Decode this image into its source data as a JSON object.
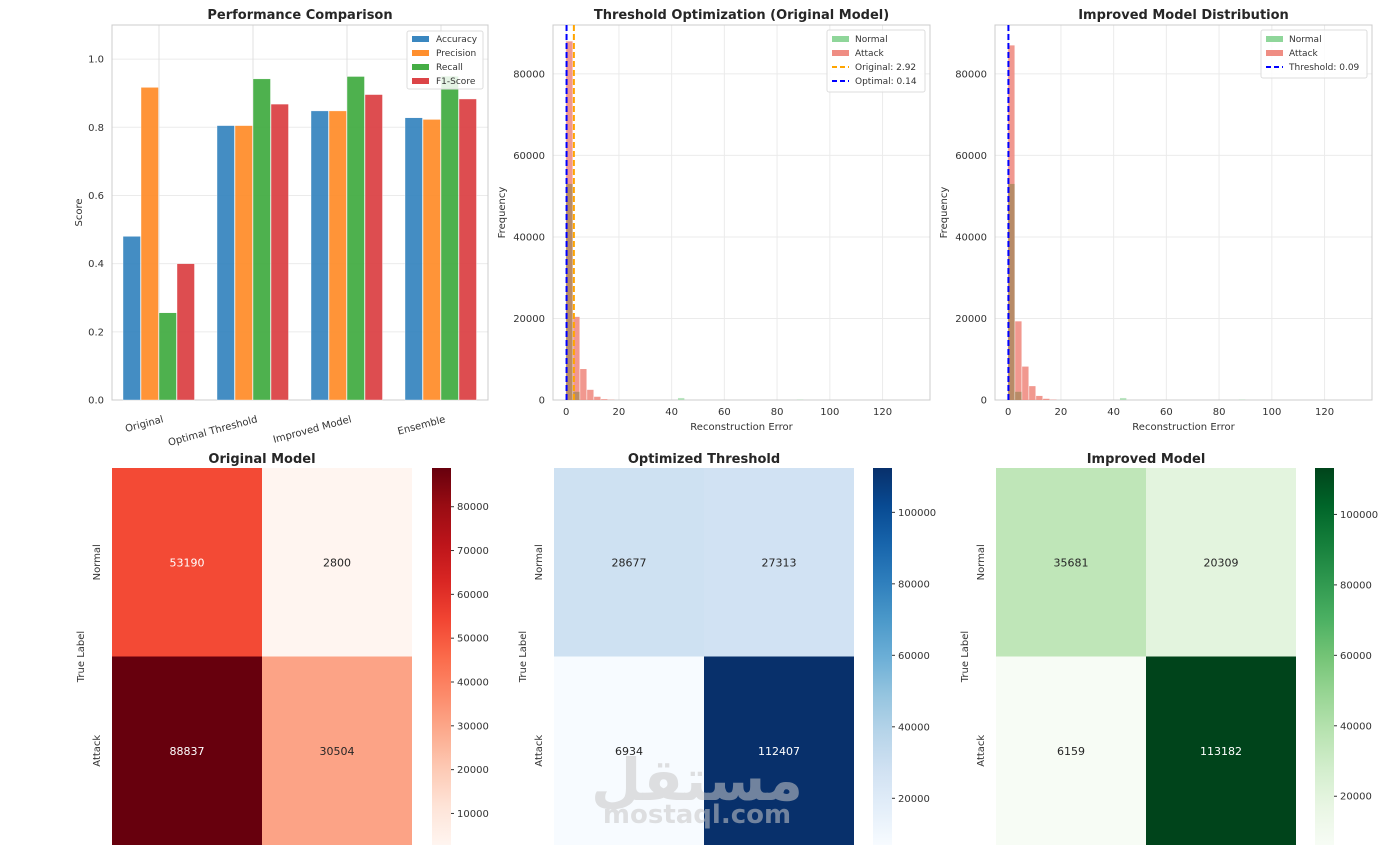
{
  "chart_data": [
    {
      "id": "perf",
      "type": "bar",
      "title": "Performance Comparison",
      "xlabel": "",
      "ylabel": "Score",
      "ylim": [
        0,
        1.1
      ],
      "yticks": [
        "0.0",
        "0.2",
        "0.4",
        "0.6",
        "0.8",
        "1.0"
      ],
      "categories": [
        "Original",
        "Optimal Threshold",
        "Improved Model",
        "Ensemble"
      ],
      "series": [
        {
          "name": "Accuracy",
          "color": "#3a87c0",
          "values": [
            0.48,
            0.805,
            0.848,
            0.828
          ]
        },
        {
          "name": "Precision",
          "color": "#ff8f2e",
          "values": [
            0.917,
            0.805,
            0.848,
            0.823
          ]
        },
        {
          "name": "Recall",
          "color": "#45ad45",
          "values": [
            0.256,
            0.942,
            0.949,
            0.95
          ]
        },
        {
          "name": "F1-Score",
          "color": "#dc4447",
          "values": [
            0.4,
            0.868,
            0.896,
            0.883
          ]
        }
      ],
      "legend": "top-right",
      "grid": true
    },
    {
      "id": "hist1",
      "type": "histogram",
      "title": "Threshold Optimization (Original Model)",
      "xlabel": "Reconstruction Error",
      "ylabel": "Frequency",
      "xlim": [
        -5,
        138
      ],
      "ylim": [
        0,
        92000
      ],
      "xticks": [
        "0",
        "20",
        "40",
        "60",
        "80",
        "100",
        "120"
      ],
      "yticks": [
        "0",
        "20000",
        "40000",
        "60000",
        "80000"
      ],
      "bin_width": 2.65,
      "series": [
        {
          "name": "Normal",
          "color": "#8fd69a",
          "bins": [
            [
              0,
              53000
            ],
            [
              2.65,
              2000
            ],
            [
              42.4,
              500
            ],
            [
              87.5,
              80
            ]
          ]
        },
        {
          "name": "Attack",
          "color": "#ef8d83",
          "bins": [
            [
              0,
              88000
            ],
            [
              2.65,
              20400
            ],
            [
              5.3,
              7600
            ],
            [
              7.95,
              2500
            ],
            [
              10.6,
              800
            ],
            [
              13.25,
              200
            ],
            [
              15.9,
              60
            ]
          ]
        }
      ],
      "lines": [
        {
          "name": "Original: 2.92",
          "value": 2.92,
          "color": "#ffa500"
        },
        {
          "name": "Optimal: 0.14",
          "value": 0.14,
          "color": "#0000ff"
        }
      ],
      "legend": "top-right",
      "grid": true
    },
    {
      "id": "hist2",
      "type": "histogram",
      "title": "Improved Model Distribution",
      "xlabel": "Reconstruction Error",
      "ylabel": "Frequency",
      "xlim": [
        -5,
        138
      ],
      "ylim": [
        0,
        92000
      ],
      "xticks": [
        "0",
        "20",
        "40",
        "60",
        "80",
        "100",
        "120"
      ],
      "yticks": [
        "0",
        "20000",
        "40000",
        "60000",
        "80000"
      ],
      "bin_width": 2.65,
      "series": [
        {
          "name": "Normal",
          "color": "#8fd69a",
          "bins": [
            [
              0,
              53000
            ],
            [
              2.65,
              2000
            ],
            [
              42.4,
              500
            ],
            [
              87.5,
              80
            ]
          ]
        },
        {
          "name": "Attack",
          "color": "#ef8d83",
          "bins": [
            [
              0,
              87000
            ],
            [
              2.65,
              19300
            ],
            [
              5.3,
              8200
            ],
            [
              7.95,
              3400
            ],
            [
              10.6,
              1000
            ],
            [
              13.25,
              300
            ],
            [
              15.9,
              80
            ]
          ]
        }
      ],
      "lines": [
        {
          "name": "Threshold: 0.09",
          "value": 0.09,
          "color": "#0000ff"
        }
      ],
      "legend": "top-right",
      "grid": true
    },
    {
      "id": "cm1",
      "type": "heatmap",
      "title": "Original Model",
      "ylabel": "True Label",
      "rows": [
        "Normal",
        "Attack"
      ],
      "values": [
        [
          53190,
          2800
        ],
        [
          88837,
          30504
        ]
      ],
      "colormap": "Reds",
      "cbar_range": [
        2800,
        88837
      ],
      "cbar_ticks": [
        "10000",
        "20000",
        "30000",
        "40000",
        "50000",
        "60000",
        "70000",
        "80000"
      ]
    },
    {
      "id": "cm2",
      "type": "heatmap",
      "title": "Optimized Threshold",
      "ylabel": "True Label",
      "rows": [
        "Normal",
        "Attack"
      ],
      "values": [
        [
          28677,
          27313
        ],
        [
          6934,
          112407
        ]
      ],
      "colormap": "Blues",
      "cbar_range": [
        6934,
        112407
      ],
      "cbar_ticks": [
        "20000",
        "40000",
        "60000",
        "80000",
        "100000"
      ]
    },
    {
      "id": "cm3",
      "type": "heatmap",
      "title": "Improved Model",
      "ylabel": "True Label",
      "rows": [
        "Normal",
        "Attack"
      ],
      "values": [
        [
          35681,
          20309
        ],
        [
          6159,
          113182
        ]
      ],
      "colormap": "Greens",
      "cbar_range": [
        6159,
        113182
      ],
      "cbar_ticks": [
        "20000",
        "40000",
        "60000",
        "80000",
        "100000"
      ]
    }
  ],
  "watermark": {
    "arabic": "مستقل",
    "latin": "mostaql.com"
  }
}
